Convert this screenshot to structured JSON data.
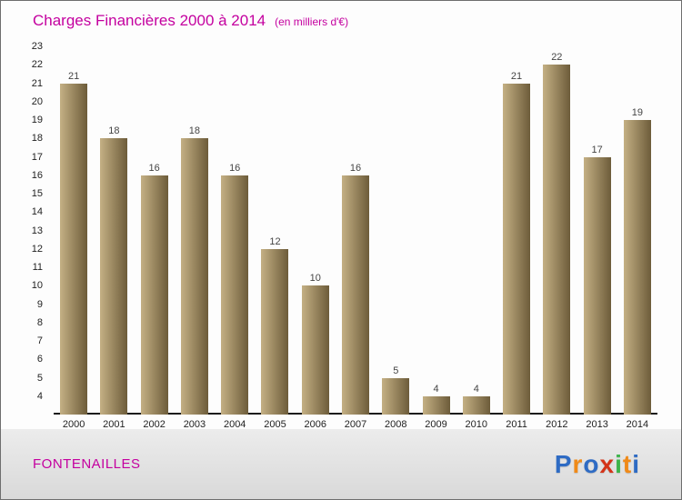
{
  "header": {
    "title": "Charges Financières 2000 à 2014",
    "subtitle": "(en milliers d'€)"
  },
  "chart_data": {
    "type": "bar",
    "title": "Charges Financières 2000 à 2014",
    "subtitle": "(en milliers d'€)",
    "categories": [
      "2000",
      "2001",
      "2002",
      "2003",
      "2004",
      "2005",
      "2006",
      "2007",
      "2008",
      "2009",
      "2010",
      "2011",
      "2012",
      "2013",
      "2014"
    ],
    "values": [
      21,
      18,
      16,
      18,
      16,
      12,
      10,
      16,
      5,
      4,
      4,
      21,
      22,
      17,
      19
    ],
    "value_labels_shown": true,
    "ylim": [
      3,
      23
    ],
    "yticks": [
      4,
      5,
      6,
      7,
      8,
      9,
      10,
      11,
      12,
      13,
      14,
      15,
      16,
      17,
      18,
      19,
      20,
      21,
      22,
      23
    ],
    "grid": false,
    "legend": false,
    "bar_color_light": "#c4b084",
    "bar_color_dark": "#6d5c3a"
  },
  "footer": {
    "location": "FONTENAILLES",
    "logo": {
      "text": "Proxiti",
      "letters": [
        {
          "ch": "P",
          "color": "#2e6bc4"
        },
        {
          "ch": "r",
          "color": "#f08a18"
        },
        {
          "ch": "o",
          "color": "#2e6bc4"
        },
        {
          "ch": "x",
          "color": "#d43318"
        },
        {
          "ch": "i",
          "color": "#3cb44a"
        },
        {
          "ch": "t",
          "color": "#f08a18"
        },
        {
          "ch": "i",
          "color": "#2e6bc4"
        }
      ]
    }
  },
  "colors": {
    "title": "#c4009f",
    "subtitle": "#c4009f",
    "location": "#c4009f",
    "axis_text": "#222222",
    "value_label": "#444444"
  }
}
